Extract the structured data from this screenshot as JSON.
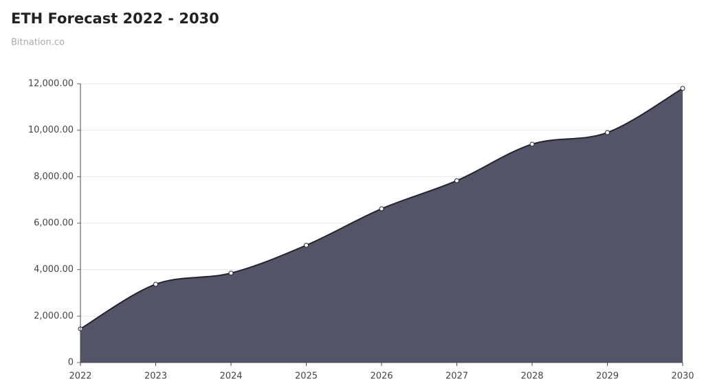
{
  "chart_data": {
    "type": "area",
    "title": "ETH Forecast 2022 - 2030",
    "subtitle": "Bitnation.co",
    "x": [
      2022,
      2023,
      2024,
      2025,
      2026,
      2027,
      2028,
      2029,
      2030
    ],
    "series": [
      {
        "name": "ETH",
        "color": "#545468",
        "values": [
          1450,
          3370,
          3850,
          5050,
          6620,
          7830,
          9400,
          9900,
          11800
        ]
      }
    ],
    "xlim": [
      2022,
      2030
    ],
    "xticks": [
      2022,
      2023,
      2024,
      2025,
      2026,
      2027,
      2028,
      2029,
      2030
    ],
    "ylim": [
      0,
      12000
    ],
    "yticks": [
      0,
      {
        "value": 2000,
        "label": "2,000.00"
      },
      {
        "value": 4000,
        "label": "4,000.00"
      },
      {
        "value": 6000,
        "label": "6,000.00"
      },
      {
        "value": 8000,
        "label": "8,000.00"
      },
      {
        "value": 10000,
        "label": "10,000.00"
      },
      {
        "value": 12000,
        "label": "12,000.00"
      }
    ],
    "grid": true
  }
}
